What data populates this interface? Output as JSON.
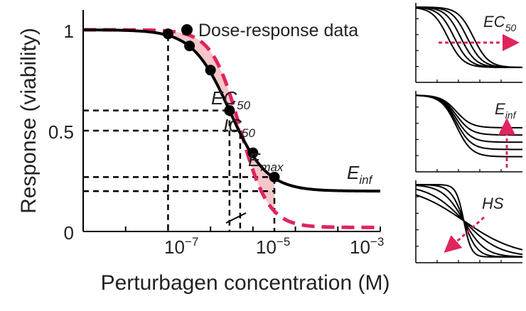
{
  "chart_data": [
    {
      "type": "line",
      "xscale": "log10",
      "xlim": [
        1e-10,
        0.001
      ],
      "ylim": [
        0,
        1.08
      ],
      "xlabel": "Perturbagen concentration (M)",
      "ylabel": "Response (viability)",
      "x_ticks": [
        {
          "value": 1e-07,
          "base": "10",
          "exp": "−7"
        },
        {
          "value": 1e-05,
          "base": "10",
          "exp": "−5"
        },
        {
          "value": 0.001,
          "base": "10",
          "exp": "−3"
        }
      ],
      "y_ticks": [
        {
          "value": 0,
          "label": "0"
        },
        {
          "value": 0.5,
          "label": "0.5"
        },
        {
          "value": 1,
          "label": "1"
        }
      ],
      "legend": {
        "label": "Dose-response data",
        "placement": "top-right",
        "color": "#000000"
      },
      "fit_curve": {
        "einf": 0.2,
        "ec50": 2.8e-07,
        "hill": 1.0,
        "top": 1.0,
        "color": "#000000"
      },
      "reference_curve": {
        "einf": 0.02,
        "ic50": 5e-07,
        "hill": 1.3,
        "top": 1.0,
        "color": "#e0245e"
      },
      "data_points": [
        {
          "x": 1e-08,
          "y": 0.98
        },
        {
          "x": 3.2e-08,
          "y": 0.92
        },
        {
          "x": 1e-07,
          "y": 0.8
        },
        {
          "x": 2.8e-07,
          "y": 0.6
        },
        {
          "x": 1e-06,
          "y": 0.39
        },
        {
          "x": 3.2e-06,
          "y": 0.27
        }
      ],
      "shade": {
        "from": 1e-08,
        "to": 3.2e-06,
        "color": "#f5c6c9"
      },
      "guides": {
        "vertical": [
          1e-08,
          2.8e-07,
          5e-07,
          3.2e-06
        ],
        "horizontal": [
          {
            "y": 0.6,
            "to": 2.8e-07
          },
          {
            "y": 0.5,
            "to": 5e-07
          },
          {
            "y": 0.27,
            "to": 3.2e-06
          },
          {
            "y": 0.2,
            "to": 3.2e-06
          }
        ]
      },
      "annotations": [
        {
          "base": "EC",
          "sub": "50"
        },
        {
          "base": "IC",
          "sub": "50"
        },
        {
          "base": "E",
          "sub": "max"
        },
        {
          "base": "E",
          "sub": "inf"
        }
      ]
    },
    {
      "type": "line",
      "annotation": {
        "base": "EC",
        "sub": "50"
      },
      "curves": [
        {
          "ec50": 0.3,
          "einf": 0.15,
          "hill": 14
        },
        {
          "ec50": 0.36,
          "einf": 0.15,
          "hill": 14
        },
        {
          "ec50": 0.42,
          "einf": 0.15,
          "hill": 14
        },
        {
          "ec50": 0.48,
          "einf": 0.15,
          "hill": 14
        },
        {
          "ec50": 0.54,
          "einf": 0.15,
          "hill": 14
        }
      ],
      "arrow_color": "#e0245e"
    },
    {
      "type": "line",
      "annotation": {
        "base": "E",
        "sub": "inf"
      },
      "curves": [
        {
          "ec50": 0.38,
          "einf": 0.15,
          "hill": 14
        },
        {
          "ec50": 0.38,
          "einf": 0.25,
          "hill": 14
        },
        {
          "ec50": 0.38,
          "einf": 0.35,
          "hill": 14
        },
        {
          "ec50": 0.38,
          "einf": 0.45,
          "hill": 14
        },
        {
          "ec50": 0.38,
          "einf": 0.55,
          "hill": 14
        }
      ],
      "arrow_color": "#e0245e"
    },
    {
      "type": "line",
      "annotation": {
        "base": "HS",
        "sub": ""
      },
      "curves": [
        {
          "ec50": 0.45,
          "einf": 0.02,
          "hill": 4
        },
        {
          "ec50": 0.45,
          "einf": 0.02,
          "hill": 6
        },
        {
          "ec50": 0.45,
          "einf": 0.02,
          "hill": 10
        },
        {
          "ec50": 0.45,
          "einf": 0.02,
          "hill": 16
        },
        {
          "ec50": 0.45,
          "einf": 0.02,
          "hill": 28
        }
      ],
      "arrow_color": "#e0245e"
    }
  ]
}
